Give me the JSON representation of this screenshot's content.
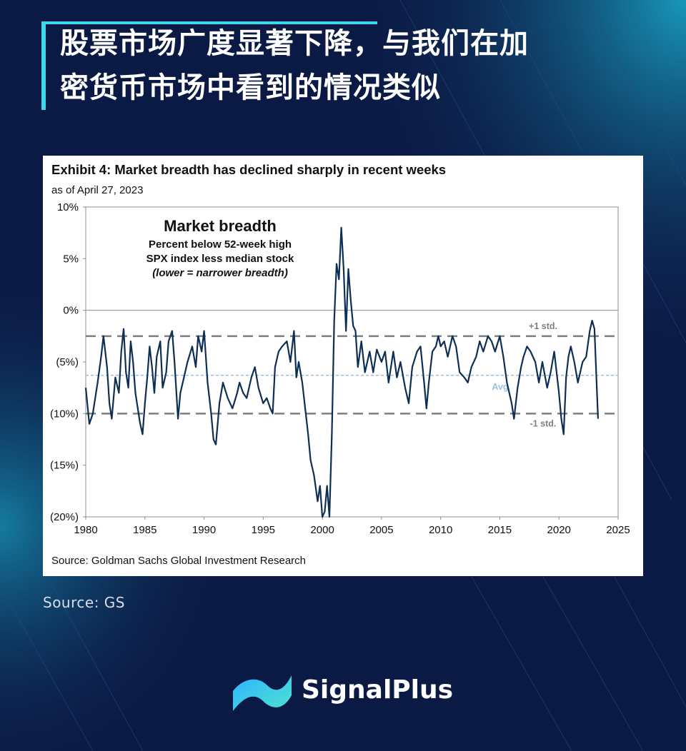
{
  "headline": {
    "line1": "股票市场广度显著下降，与我们在加",
    "line2": "密货币市场中看到的情况类似"
  },
  "footer": {
    "source": "Source: GS",
    "brand": "SignalPlus"
  },
  "colors": {
    "background": "#0b1a45",
    "accent": "#3fd6e8",
    "series": "#0e2f55",
    "std_band": "#7f7f7f",
    "average": "#9fbfd9"
  },
  "chart_data": {
    "type": "line",
    "title": "Exhibit 4: Market breadth has declined sharply in recent weeks",
    "subtitle": "as of April 27, 2023",
    "source": "Source: Goldman Sachs Global Investment Research",
    "annotation": {
      "title": "Market breadth",
      "line1": "Percent below 52-week high",
      "line2": "SPX index less median stock",
      "line3": "(lower = narrower breadth)"
    },
    "xlim": [
      1980,
      2025
    ],
    "ylim": [
      -20,
      10
    ],
    "x_ticks": [
      1980,
      1985,
      1990,
      1995,
      2000,
      2005,
      2010,
      2015,
      2020,
      2025
    ],
    "x_tick_labels": [
      "1980",
      "1985",
      "1990",
      "1995",
      "2000",
      "2005",
      "2010",
      "2015",
      "2020",
      "2025"
    ],
    "y_ticks": [
      10,
      5,
      0,
      -5,
      -10,
      -15,
      -20
    ],
    "y_tick_labels": [
      "10%",
      "5%",
      "0%",
      "(5%)",
      "(10%)",
      "(15%)",
      "(20%)"
    ],
    "reference_lines": [
      {
        "label": "+1 std.",
        "value": -2.5,
        "style": "dashed"
      },
      {
        "label": "Avg",
        "value": -6.3,
        "style": "dashed"
      },
      {
        "label": "-1 std.",
        "value": -10.0,
        "style": "dashed"
      }
    ],
    "grid": false,
    "series": [
      {
        "points": [
          [
            1980.0,
            -7.5
          ],
          [
            1980.3,
            -11.0
          ],
          [
            1980.6,
            -10.0
          ],
          [
            1981.0,
            -7.0
          ],
          [
            1981.3,
            -4.5
          ],
          [
            1981.5,
            -2.5
          ],
          [
            1981.8,
            -5.5
          ],
          [
            1982.0,
            -9.0
          ],
          [
            1982.2,
            -10.5
          ],
          [
            1982.5,
            -6.5
          ],
          [
            1982.8,
            -8.0
          ],
          [
            1983.0,
            -4.0
          ],
          [
            1983.2,
            -1.8
          ],
          [
            1983.4,
            -6.0
          ],
          [
            1983.6,
            -7.5
          ],
          [
            1983.8,
            -3.0
          ],
          [
            1984.0,
            -5.0
          ],
          [
            1984.2,
            -8.0
          ],
          [
            1984.4,
            -9.5
          ],
          [
            1984.6,
            -11.0
          ],
          [
            1984.8,
            -12.0
          ],
          [
            1985.0,
            -9.0
          ],
          [
            1985.2,
            -6.5
          ],
          [
            1985.4,
            -3.5
          ],
          [
            1985.6,
            -5.5
          ],
          [
            1985.8,
            -8.0
          ],
          [
            1986.0,
            -4.5
          ],
          [
            1986.3,
            -3.0
          ],
          [
            1986.5,
            -7.5
          ],
          [
            1986.8,
            -6.0
          ],
          [
            1987.0,
            -3.0
          ],
          [
            1987.3,
            -2.0
          ],
          [
            1987.5,
            -5.0
          ],
          [
            1987.8,
            -10.5
          ],
          [
            1988.0,
            -8.0
          ],
          [
            1988.3,
            -6.5
          ],
          [
            1988.6,
            -5.0
          ],
          [
            1989.0,
            -3.5
          ],
          [
            1989.3,
            -5.5
          ],
          [
            1989.5,
            -2.5
          ],
          [
            1989.8,
            -4.0
          ],
          [
            1990.0,
            -2.0
          ],
          [
            1990.3,
            -7.0
          ],
          [
            1990.6,
            -10.0
          ],
          [
            1990.8,
            -12.5
          ],
          [
            1991.0,
            -13.0
          ],
          [
            1991.3,
            -9.0
          ],
          [
            1991.6,
            -7.0
          ],
          [
            1992.0,
            -8.5
          ],
          [
            1992.4,
            -9.5
          ],
          [
            1992.8,
            -8.0
          ],
          [
            1993.0,
            -7.0
          ],
          [
            1993.3,
            -8.0
          ],
          [
            1993.6,
            -8.5
          ],
          [
            1994.0,
            -6.5
          ],
          [
            1994.3,
            -5.5
          ],
          [
            1994.6,
            -7.5
          ],
          [
            1995.0,
            -9.0
          ],
          [
            1995.3,
            -8.5
          ],
          [
            1995.6,
            -9.5
          ],
          [
            1995.8,
            -10.0
          ],
          [
            1996.0,
            -5.5
          ],
          [
            1996.3,
            -4.0
          ],
          [
            1996.6,
            -3.5
          ],
          [
            1997.0,
            -3.0
          ],
          [
            1997.3,
            -5.0
          ],
          [
            1997.6,
            -2.0
          ],
          [
            1997.8,
            -6.5
          ],
          [
            1998.0,
            -5.0
          ],
          [
            1998.3,
            -7.0
          ],
          [
            1998.6,
            -10.0
          ],
          [
            1998.8,
            -12.0
          ],
          [
            1999.0,
            -14.5
          ],
          [
            1999.3,
            -16.0
          ],
          [
            1999.6,
            -18.5
          ],
          [
            1999.8,
            -17.0
          ],
          [
            2000.0,
            -20.0
          ],
          [
            2000.2,
            -19.5
          ],
          [
            2000.4,
            -17.0
          ],
          [
            2000.6,
            -20.0
          ],
          [
            2000.8,
            -12.0
          ],
          [
            2001.0,
            -1.0
          ],
          [
            2001.2,
            4.5
          ],
          [
            2001.4,
            3.0
          ],
          [
            2001.6,
            8.0
          ],
          [
            2001.8,
            4.0
          ],
          [
            2002.0,
            -2.0
          ],
          [
            2002.2,
            4.0
          ],
          [
            2002.4,
            1.0
          ],
          [
            2002.6,
            -1.5
          ],
          [
            2002.8,
            -2.0
          ],
          [
            2003.0,
            -5.5
          ],
          [
            2003.3,
            -3.0
          ],
          [
            2003.6,
            -6.0
          ],
          [
            2004.0,
            -4.0
          ],
          [
            2004.3,
            -6.0
          ],
          [
            2004.6,
            -3.8
          ],
          [
            2005.0,
            -5.0
          ],
          [
            2005.3,
            -4.0
          ],
          [
            2005.6,
            -7.0
          ],
          [
            2006.0,
            -4.0
          ],
          [
            2006.3,
            -6.5
          ],
          [
            2006.6,
            -5.0
          ],
          [
            2007.0,
            -7.5
          ],
          [
            2007.3,
            -9.0
          ],
          [
            2007.6,
            -5.5
          ],
          [
            2008.0,
            -4.0
          ],
          [
            2008.3,
            -3.5
          ],
          [
            2008.6,
            -7.0
          ],
          [
            2008.8,
            -9.5
          ],
          [
            2009.0,
            -7.0
          ],
          [
            2009.3,
            -4.0
          ],
          [
            2009.6,
            -3.5
          ],
          [
            2009.8,
            -2.5
          ],
          [
            2010.0,
            -3.5
          ],
          [
            2010.3,
            -3.0
          ],
          [
            2010.6,
            -4.5
          ],
          [
            2011.0,
            -2.5
          ],
          [
            2011.3,
            -3.5
          ],
          [
            2011.6,
            -6.0
          ],
          [
            2012.0,
            -6.5
          ],
          [
            2012.3,
            -7.0
          ],
          [
            2012.6,
            -5.5
          ],
          [
            2013.0,
            -4.5
          ],
          [
            2013.3,
            -3.0
          ],
          [
            2013.6,
            -4.0
          ],
          [
            2014.0,
            -2.5
          ],
          [
            2014.3,
            -3.0
          ],
          [
            2014.6,
            -4.0
          ],
          [
            2015.0,
            -2.5
          ],
          [
            2015.3,
            -4.5
          ],
          [
            2015.6,
            -7.0
          ],
          [
            2016.0,
            -9.0
          ],
          [
            2016.2,
            -10.5
          ],
          [
            2016.5,
            -7.5
          ],
          [
            2016.8,
            -5.5
          ],
          [
            2017.0,
            -4.5
          ],
          [
            2017.3,
            -3.5
          ],
          [
            2017.6,
            -4.0
          ],
          [
            2018.0,
            -5.0
          ],
          [
            2018.3,
            -7.0
          ],
          [
            2018.6,
            -5.0
          ],
          [
            2019.0,
            -7.5
          ],
          [
            2019.3,
            -6.0
          ],
          [
            2019.6,
            -4.0
          ],
          [
            2020.0,
            -8.0
          ],
          [
            2020.2,
            -10.5
          ],
          [
            2020.4,
            -12.0
          ],
          [
            2020.6,
            -6.5
          ],
          [
            2020.8,
            -4.5
          ],
          [
            2021.0,
            -3.5
          ],
          [
            2021.3,
            -5.0
          ],
          [
            2021.6,
            -7.0
          ],
          [
            2021.8,
            -6.0
          ],
          [
            2022.0,
            -5.0
          ],
          [
            2022.3,
            -4.5
          ],
          [
            2022.6,
            -2.0
          ],
          [
            2022.8,
            -1.0
          ],
          [
            2023.0,
            -1.8
          ],
          [
            2023.3,
            -10.5
          ]
        ]
      }
    ]
  }
}
